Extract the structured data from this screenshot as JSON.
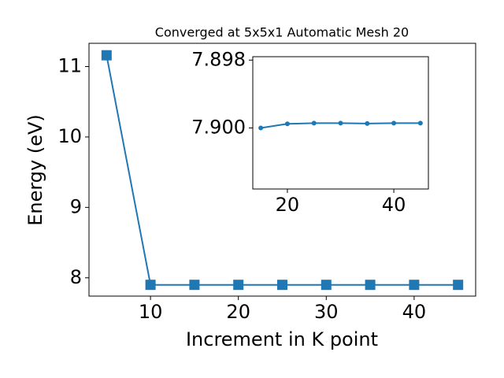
{
  "chart_data": [
    {
      "type": "line",
      "title": "Converged at 5x5x1 Automatic Mesh 20",
      "xlabel": "Increment in K point",
      "ylabel": "Energy (eV)",
      "x": [
        5,
        10,
        15,
        20,
        25,
        30,
        35,
        40,
        45
      ],
      "values": [
        11.16,
        7.9,
        7.9,
        7.89988,
        7.89986,
        7.89986,
        7.89987,
        7.89986,
        7.89986
      ],
      "color": "#1f77b4",
      "marker": "square",
      "xlim": [
        3,
        47
      ],
      "ylim": [
        7.74,
        11.33
      ],
      "xticks": [
        10,
        20,
        30,
        40
      ],
      "yticks": [
        8,
        9,
        10,
        11
      ]
    },
    {
      "type": "line",
      "x": [
        15,
        20,
        25,
        30,
        35,
        40,
        45
      ],
      "values": [
        7.9,
        7.89988,
        7.89986,
        7.89986,
        7.89987,
        7.89986,
        7.89986
      ],
      "color": "#1f77b4",
      "marker": "circle",
      "xlim": [
        13.5,
        46.5
      ],
      "ylim": [
        7.9018,
        7.8979
      ],
      "xticks": [
        20,
        40
      ],
      "yticks": [
        7.898,
        {
          "value": 7.9,
          "label": "7.900"
        }
      ]
    }
  ]
}
